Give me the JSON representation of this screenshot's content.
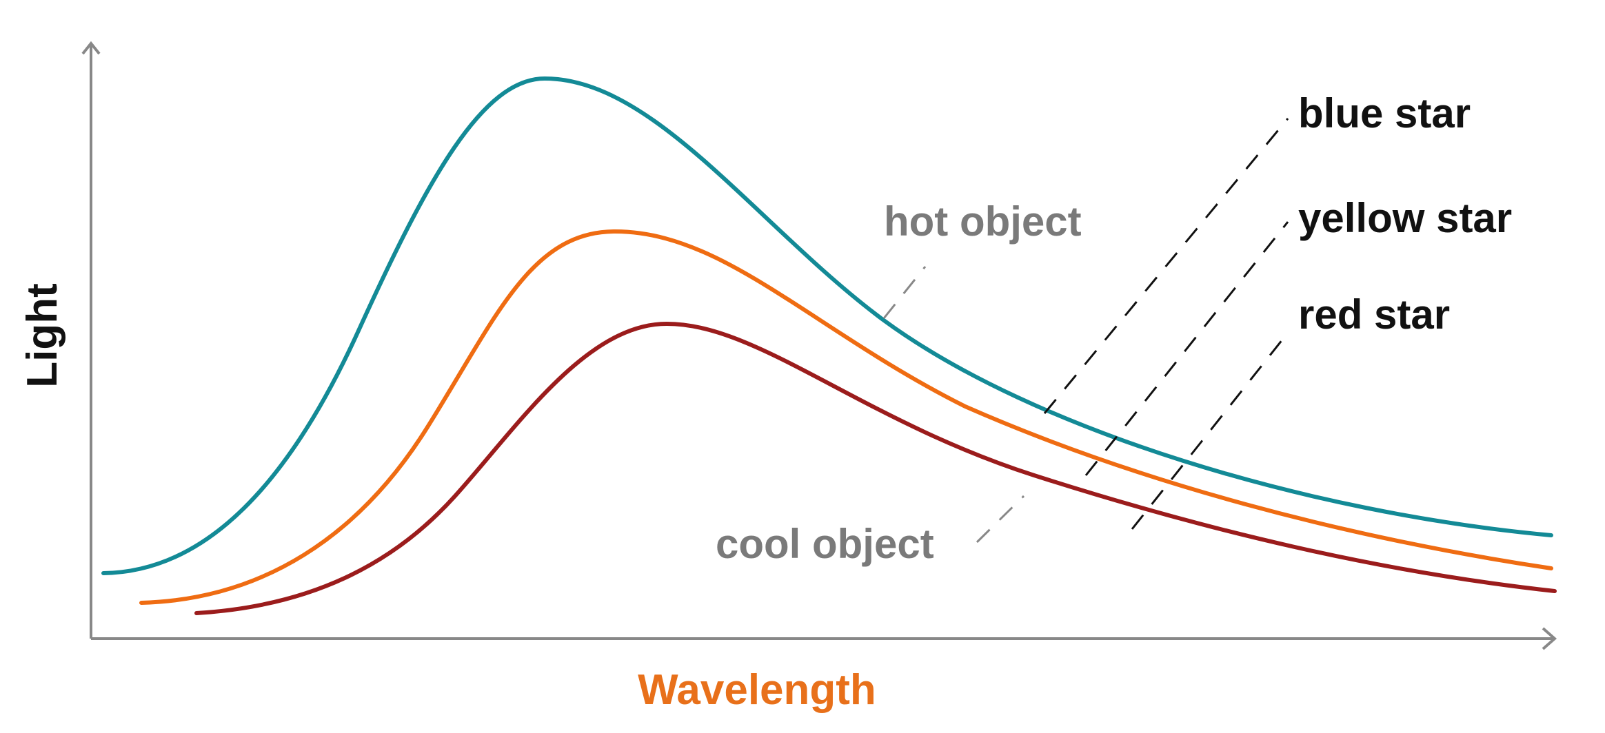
{
  "axes": {
    "y_label": "Light",
    "x_label": "Wavelength"
  },
  "annotations": {
    "hot": "hot object",
    "cool": "cool object"
  },
  "curves": [
    {
      "label": "blue star"
    },
    {
      "label": "yellow star"
    },
    {
      "label": "red star"
    }
  ]
}
